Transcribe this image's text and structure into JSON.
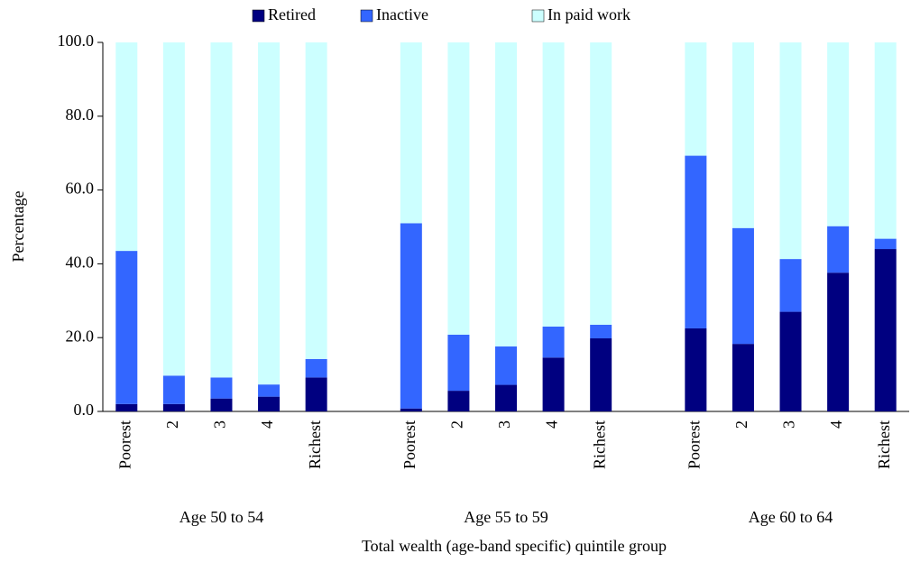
{
  "chart_data": {
    "type": "stacked_bar",
    "categories": [
      "Poorest",
      "2",
      "3",
      "4",
      "Richest",
      null,
      "Poorest",
      "2",
      "3",
      "4",
      "Richest",
      null,
      "Poorest",
      "2",
      "3",
      "4",
      "Richest"
    ],
    "group_labels": [
      "Age 50 to 54",
      "Age 55 to 59",
      "Age 60 to 64"
    ],
    "series": [
      {
        "name": "Retired",
        "color": "#000080",
        "values": [
          2.0,
          2.0,
          3.5,
          4.0,
          9.2,
          null,
          0.8,
          5.6,
          7.2,
          14.6,
          19.8,
          null,
          22.5,
          18.3,
          27.0,
          37.6,
          44.0
        ]
      },
      {
        "name": "Inactive",
        "color": "#3366ff",
        "values": [
          41.5,
          7.7,
          5.7,
          3.3,
          5.0,
          null,
          50.2,
          15.2,
          10.4,
          8.4,
          3.7,
          null,
          46.8,
          31.4,
          14.3,
          12.6,
          2.8
        ]
      },
      {
        "name": "In paid work",
        "color": "#ccffff",
        "values": [
          56.5,
          90.3,
          90.8,
          92.7,
          85.8,
          null,
          49.0,
          79.2,
          82.4,
          77.0,
          76.5,
          null,
          30.7,
          50.3,
          58.7,
          49.8,
          53.2
        ]
      }
    ],
    "ylabel": "Percentage",
    "xlabel": "Total wealth (age-band specific) quintile group",
    "ylim": [
      0,
      100
    ],
    "yticks": [
      {
        "value": 0,
        "label": "0.0"
      },
      {
        "value": 20,
        "label": "20.0"
      },
      {
        "value": 40,
        "label": "40.0"
      },
      {
        "value": 60,
        "label": "60.0"
      },
      {
        "value": 80,
        "label": "80.0"
      },
      {
        "value": 100,
        "label": "100.0"
      }
    ],
    "grid": false,
    "legend": "top"
  }
}
